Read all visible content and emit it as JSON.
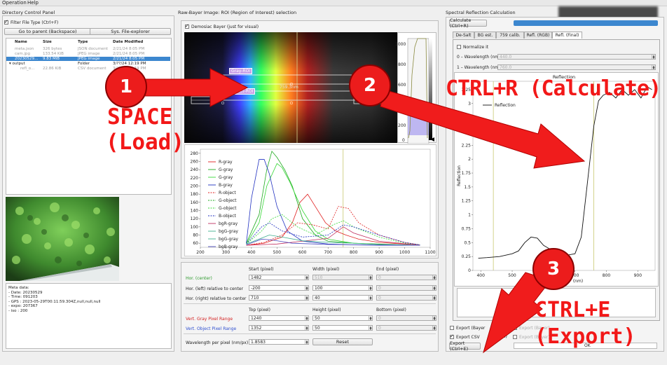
{
  "menu": [
    "Operation",
    "Help"
  ],
  "left_panel": {
    "title": "Directory Control Panel",
    "filter_label": "Filter File Type (Ctrl+F)",
    "go_parent_label": "Go to parent (Backspace)",
    "sys_explorer_label": "Sys. File-explorer",
    "columns": [
      "Name",
      "Size",
      "Type",
      "Date Modified"
    ],
    "rows": [
      {
        "name": "meta.json",
        "size": "326 bytes",
        "type": "JSON document",
        "date": "2/21/24 8:05 PM",
        "style": "dim"
      },
      {
        "name": "cam.jpg",
        "size": "133.54 KiB",
        "type": "JPEG image",
        "date": "2/21/24 8:05 PM",
        "style": "dim"
      },
      {
        "name": "20230529...",
        "size": "9.83 MiB",
        "type": "JPEG image",
        "date": "2/21/24 8:05 PM",
        "style": "sel"
      },
      {
        "name": "▾ output",
        "size": "",
        "type": "Folder",
        "date": "3/??/24 12:19 PM",
        "style": "dark"
      },
      {
        "name": "refl_o...",
        "size": "22.86 KiB",
        "type": "CSV document",
        "date": "3/??/24 12:19 PM",
        "style": "dim"
      }
    ],
    "meta_lines": [
      "Meta data:",
      "- Date: 20230529",
      "- Time: 091203",
      "- GPS : 2023-05-29T00:11:59.304Z,null,null,null",
      "",
      "- expo: 207367",
      "- iso : 200"
    ]
  },
  "middle_panel": {
    "title": "Raw-Bayer Image: ROI (Region of Interest) selection",
    "demosaic_label": "Demosiac Bayer (just for visual)",
    "gray_roi_label": "Gray-ROI",
    "object_roi_label": "Object-ROI",
    "nm_readout": "759.3nm",
    "colorbar_ticks": [
      "1000",
      "800",
      "600",
      "400",
      "200",
      "0"
    ],
    "params": {
      "col_headers_1": [
        "Start (pixel)",
        "Width (pixel)",
        "End (pixel)"
      ],
      "row_hor_center": {
        "label": "Hor. (center)",
        "start": "1482",
        "width": "510",
        "end": "0"
      },
      "row_hor_left": {
        "label": "Hor. (left) relative to center",
        "start": "-200",
        "width": "100",
        "end": "0"
      },
      "row_hor_right": {
        "label": "Hor. (right) relative to center",
        "start": "710",
        "width": "40",
        "end": "0"
      },
      "col_headers_2": [
        "Top (pixel)",
        "Height (pixel)",
        "Bottom (pixel)"
      ],
      "row_vert_gray": {
        "label": "Vert. Gray Pixel Range",
        "top": "1240",
        "height": "50",
        "bottom": "0"
      },
      "row_vert_obj": {
        "label": "Vert. Object Pixel Range",
        "top": "1352",
        "height": "50",
        "bottom": "0"
      },
      "wavelength_label": "Wavelength per pixel (nm/px)",
      "wavelength_value": "1.8583",
      "reset_label": "Reset"
    },
    "colors": {
      "center_label": "#2f9a2f",
      "gray_label": "#d42020",
      "object_label": "#2f4fd0"
    }
  },
  "right_panel": {
    "title": "Spectral Reflection Calculation",
    "calc_label": "Calculate (Ctrl+R)",
    "tabs": [
      "De-Salt",
      "BG est.",
      "759 calib.",
      "Refl. (RGB)",
      "Refl. (Final)"
    ],
    "active_tab": 4,
    "normalize_label": "Normalize it",
    "wl0_label": "0 – Wavelength (nm)",
    "wl0_value": "440.0",
    "wl1_label": "1 – Wavelength (nm)",
    "wl1_value": "760.0",
    "export_bayer_label": "Export (Bayer",
    "export_bayer_right": "Export (Bayer)",
    "export_csv_label": "Export CSV",
    "export_csv_mid": "iction)",
    "export_csv_right": "Export (Bayer)",
    "export_button_label": "Export (Ctrl+E)",
    "export_status": "OK"
  },
  "annotations": {
    "step1_number": "1",
    "step1_text_line1": "SPACE",
    "step1_text_line2": "(Load)",
    "step2_number": "2",
    "step2_text": "CTRL+R (Calculate)",
    "step3_number": "3",
    "step3_text_line1": "CTRL+E",
    "step3_text_line2": "(Export)"
  },
  "chart_data": [
    {
      "type": "line",
      "title": "",
      "xlim": [
        200,
        1100
      ],
      "ylim": [
        50,
        290
      ],
      "x_ticks": [
        200,
        300,
        400,
        500,
        600,
        700,
        800,
        900,
        1000,
        1100
      ],
      "y_ticks": [
        60,
        80,
        100,
        120,
        140,
        160,
        180,
        200,
        220,
        240,
        260,
        280
      ],
      "vertical_marker_x": 759,
      "legend": [
        "R-gray",
        "G-gray",
        "G-gray",
        "B-gray",
        "R-object",
        "G-object",
        "G-object",
        "B-object",
        "bgR-gray",
        "bgG-gray",
        "bgG-gray",
        "bgB-gray"
      ],
      "series": [
        {
          "name": "R-gray",
          "color": "#e02020",
          "dash": false,
          "x": [
            380,
            450,
            520,
            560,
            590,
            620,
            650,
            690,
            730,
            770,
            820,
            900,
            1000,
            1060
          ],
          "y": [
            55,
            60,
            75,
            110,
            160,
            180,
            150,
            110,
            90,
            80,
            70,
            62,
            58,
            56
          ]
        },
        {
          "name": "G-gray",
          "color": "#1faa1f",
          "dash": false,
          "x": [
            380,
            430,
            460,
            480,
            500,
            530,
            560,
            600,
            650,
            700,
            800,
            900,
            1000,
            1060
          ],
          "y": [
            60,
            130,
            240,
            285,
            270,
            240,
            200,
            120,
            80,
            65,
            60,
            58,
            56,
            55
          ]
        },
        {
          "name": "G-gray",
          "color": "#38d838",
          "dash": false,
          "x": [
            380,
            430,
            460,
            500,
            520,
            550,
            600,
            650,
            700,
            800,
            900,
            1000,
            1060
          ],
          "y": [
            58,
            110,
            200,
            255,
            245,
            210,
            140,
            90,
            70,
            60,
            57,
            55,
            55
          ]
        },
        {
          "name": "B-gray",
          "color": "#2030c0",
          "dash": false,
          "x": [
            380,
            400,
            430,
            450,
            470,
            500,
            540,
            600,
            700,
            800,
            900,
            1000,
            1060
          ],
          "y": [
            60,
            170,
            265,
            265,
            230,
            150,
            90,
            65,
            58,
            56,
            55,
            55,
            55
          ]
        },
        {
          "name": "R-object",
          "color": "#e02020",
          "dash": true,
          "x": [
            380,
            450,
            520,
            580,
            640,
            700,
            740,
            780,
            820,
            900,
            1000,
            1060
          ],
          "y": [
            55,
            62,
            80,
            110,
            105,
            95,
            150,
            145,
            110,
            80,
            62,
            56
          ]
        },
        {
          "name": "G-object",
          "color": "#38d838",
          "dash": true,
          "x": [
            380,
            440,
            480,
            520,
            580,
            650,
            720,
            760,
            800,
            900,
            1000,
            1060
          ],
          "y": [
            58,
            90,
            120,
            130,
            100,
            80,
            105,
            115,
            100,
            75,
            60,
            56
          ]
        },
        {
          "name": "B-object",
          "color": "#2030c0",
          "dash": true,
          "x": [
            380,
            440,
            470,
            520,
            600,
            700,
            760,
            800,
            900,
            1000,
            1060
          ],
          "y": [
            58,
            100,
            110,
            90,
            75,
            80,
            105,
            100,
            80,
            62,
            56
          ]
        },
        {
          "name": "bgR-gray",
          "color": "#c03060",
          "dash": false,
          "x": [
            380,
            500,
            600,
            700,
            760,
            800,
            900,
            1060
          ],
          "y": [
            55,
            58,
            65,
            72,
            100,
            85,
            65,
            55
          ]
        },
        {
          "name": "bgG-gray",
          "color": "#40b090",
          "dash": false,
          "x": [
            380,
            470,
            520,
            600,
            700,
            800,
            900,
            1060
          ],
          "y": [
            58,
            80,
            75,
            66,
            62,
            60,
            57,
            55
          ]
        },
        {
          "name": "bgB-gray",
          "color": "#5050c0",
          "dash": false,
          "x": [
            380,
            440,
            480,
            560,
            700,
            800,
            1060
          ],
          "y": [
            56,
            70,
            68,
            60,
            57,
            56,
            55
          ]
        }
      ]
    },
    {
      "type": "line",
      "title": "Reflection",
      "xlabel": "(nm)",
      "ylabel": "Reflection",
      "xlim": [
        375,
        955
      ],
      "ylim": [
        0,
        3.4
      ],
      "x_ticks": [
        400,
        500,
        600,
        700,
        800,
        900
      ],
      "y_ticks": [
        0,
        0.25,
        0.5,
        0.75,
        1,
        1.25,
        1.5,
        1.75,
        2,
        2.25,
        2.5,
        2.75,
        3,
        3.25
      ],
      "vertical_markers_x": [
        440,
        760
      ],
      "series": [
        {
          "name": "Reflection",
          "color": "#111111",
          "x": [
            392,
            420,
            460,
            500,
            520,
            540,
            560,
            580,
            600,
            640,
            680,
            700,
            720,
            740,
            760,
            775,
            790,
            810,
            830,
            850,
            870,
            890,
            910,
            930,
            945
          ],
          "y": [
            0.22,
            0.23,
            0.25,
            0.3,
            0.35,
            0.5,
            0.6,
            0.58,
            0.45,
            0.32,
            0.28,
            0.3,
            0.6,
            1.6,
            2.6,
            3.05,
            3.15,
            3.2,
            3.1,
            3.25,
            3.15,
            3.25,
            3.1,
            3.3,
            3.25
          ]
        }
      ]
    }
  ]
}
